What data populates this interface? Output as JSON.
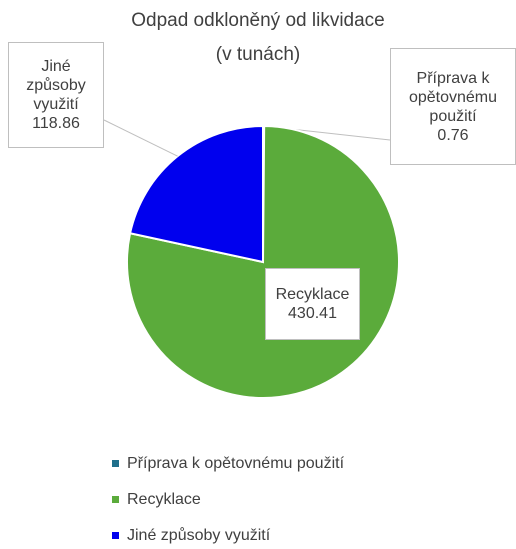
{
  "chart_data": {
    "type": "pie",
    "title": "Odpad odkloněný od likvidace",
    "subtitle": "(v tunách)",
    "categories": [
      "Příprava k opětovnému použití",
      "Recyklace",
      "Jiné způsoby využití"
    ],
    "values": [
      0.76,
      430.41,
      118.86
    ],
    "colors": [
      "#1f6f8b",
      "#5bab3b",
      "#0000ee"
    ],
    "legend": "bottom"
  }
}
